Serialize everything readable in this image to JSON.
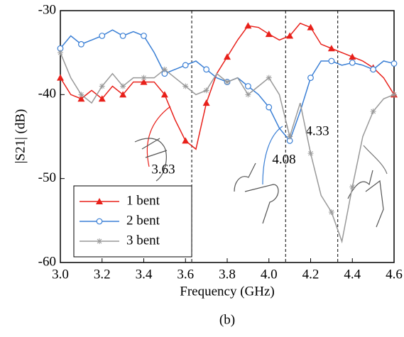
{
  "chart_data": {
    "type": "line",
    "x_label": "Frequency (GHz)",
    "y_label": "|S21| (dB)",
    "caption": "(b)",
    "xlim": [
      3.0,
      4.6
    ],
    "xticks": [
      {
        "value": 3.0,
        "label": "3.0"
      },
      3.2,
      3.4,
      3.6,
      3.8,
      {
        "value": 4.0,
        "label": "4.0"
      },
      4.2,
      4.4,
      4.6
    ],
    "ylim": [
      -60,
      -30
    ],
    "yticks": [
      -60,
      -50,
      -40,
      -30
    ],
    "vlines": [
      3.63,
      4.08,
      4.33
    ],
    "x": [
      3.0,
      3.05,
      3.1,
      3.15,
      3.2,
      3.25,
      3.3,
      3.35,
      3.4,
      3.45,
      3.5,
      3.55,
      3.6,
      3.65,
      3.7,
      3.75,
      3.8,
      3.85,
      3.9,
      3.95,
      4.0,
      4.05,
      4.1,
      4.15,
      4.2,
      4.25,
      4.3,
      4.35,
      4.4,
      4.45,
      4.5,
      4.55,
      4.6
    ],
    "series": [
      {
        "name": "1 bent",
        "color": "#e8201a",
        "marker": "triangle",
        "values": [
          -38,
          -40,
          -40.5,
          -39.5,
          -40.5,
          -39,
          -40,
          -38.5,
          -38.5,
          -38.5,
          -40,
          -43,
          -45.5,
          -46.5,
          -41,
          -37.5,
          -35.5,
          -33.5,
          -31.8,
          -32,
          -32.8,
          -33.5,
          -33,
          -31.5,
          -32,
          -34,
          -34.5,
          -35,
          -35.5,
          -36,
          -36.8,
          -38,
          -40
        ]
      },
      {
        "name": "2 bent",
        "color": "#3a7fd5",
        "marker": "circle",
        "values": [
          -34.5,
          -33,
          -34,
          -33.5,
          -33,
          -32.3,
          -33,
          -32.5,
          -33,
          -35,
          -37.5,
          -37,
          -36.5,
          -36,
          -37,
          -38,
          -38.5,
          -38,
          -39,
          -40,
          -41.5,
          -44,
          -45.5,
          -42,
          -38,
          -36,
          -36,
          -36.5,
          -36.2,
          -36.5,
          -37,
          -36,
          -36.3
        ]
      },
      {
        "name": "3 bent",
        "color": "#999999",
        "marker": "star",
        "values": [
          -35,
          -38,
          -40,
          -41,
          -39,
          -37.5,
          -39,
          -38,
          -38,
          -38,
          -37,
          -38,
          -39,
          -40,
          -39.5,
          -37.5,
          -38.5,
          -38,
          -40,
          -39,
          -38,
          -40,
          -45,
          -41,
          -47,
          -52,
          -54,
          -57.5,
          -51,
          -45,
          -42,
          -40.5,
          -40
        ]
      }
    ]
  }
}
